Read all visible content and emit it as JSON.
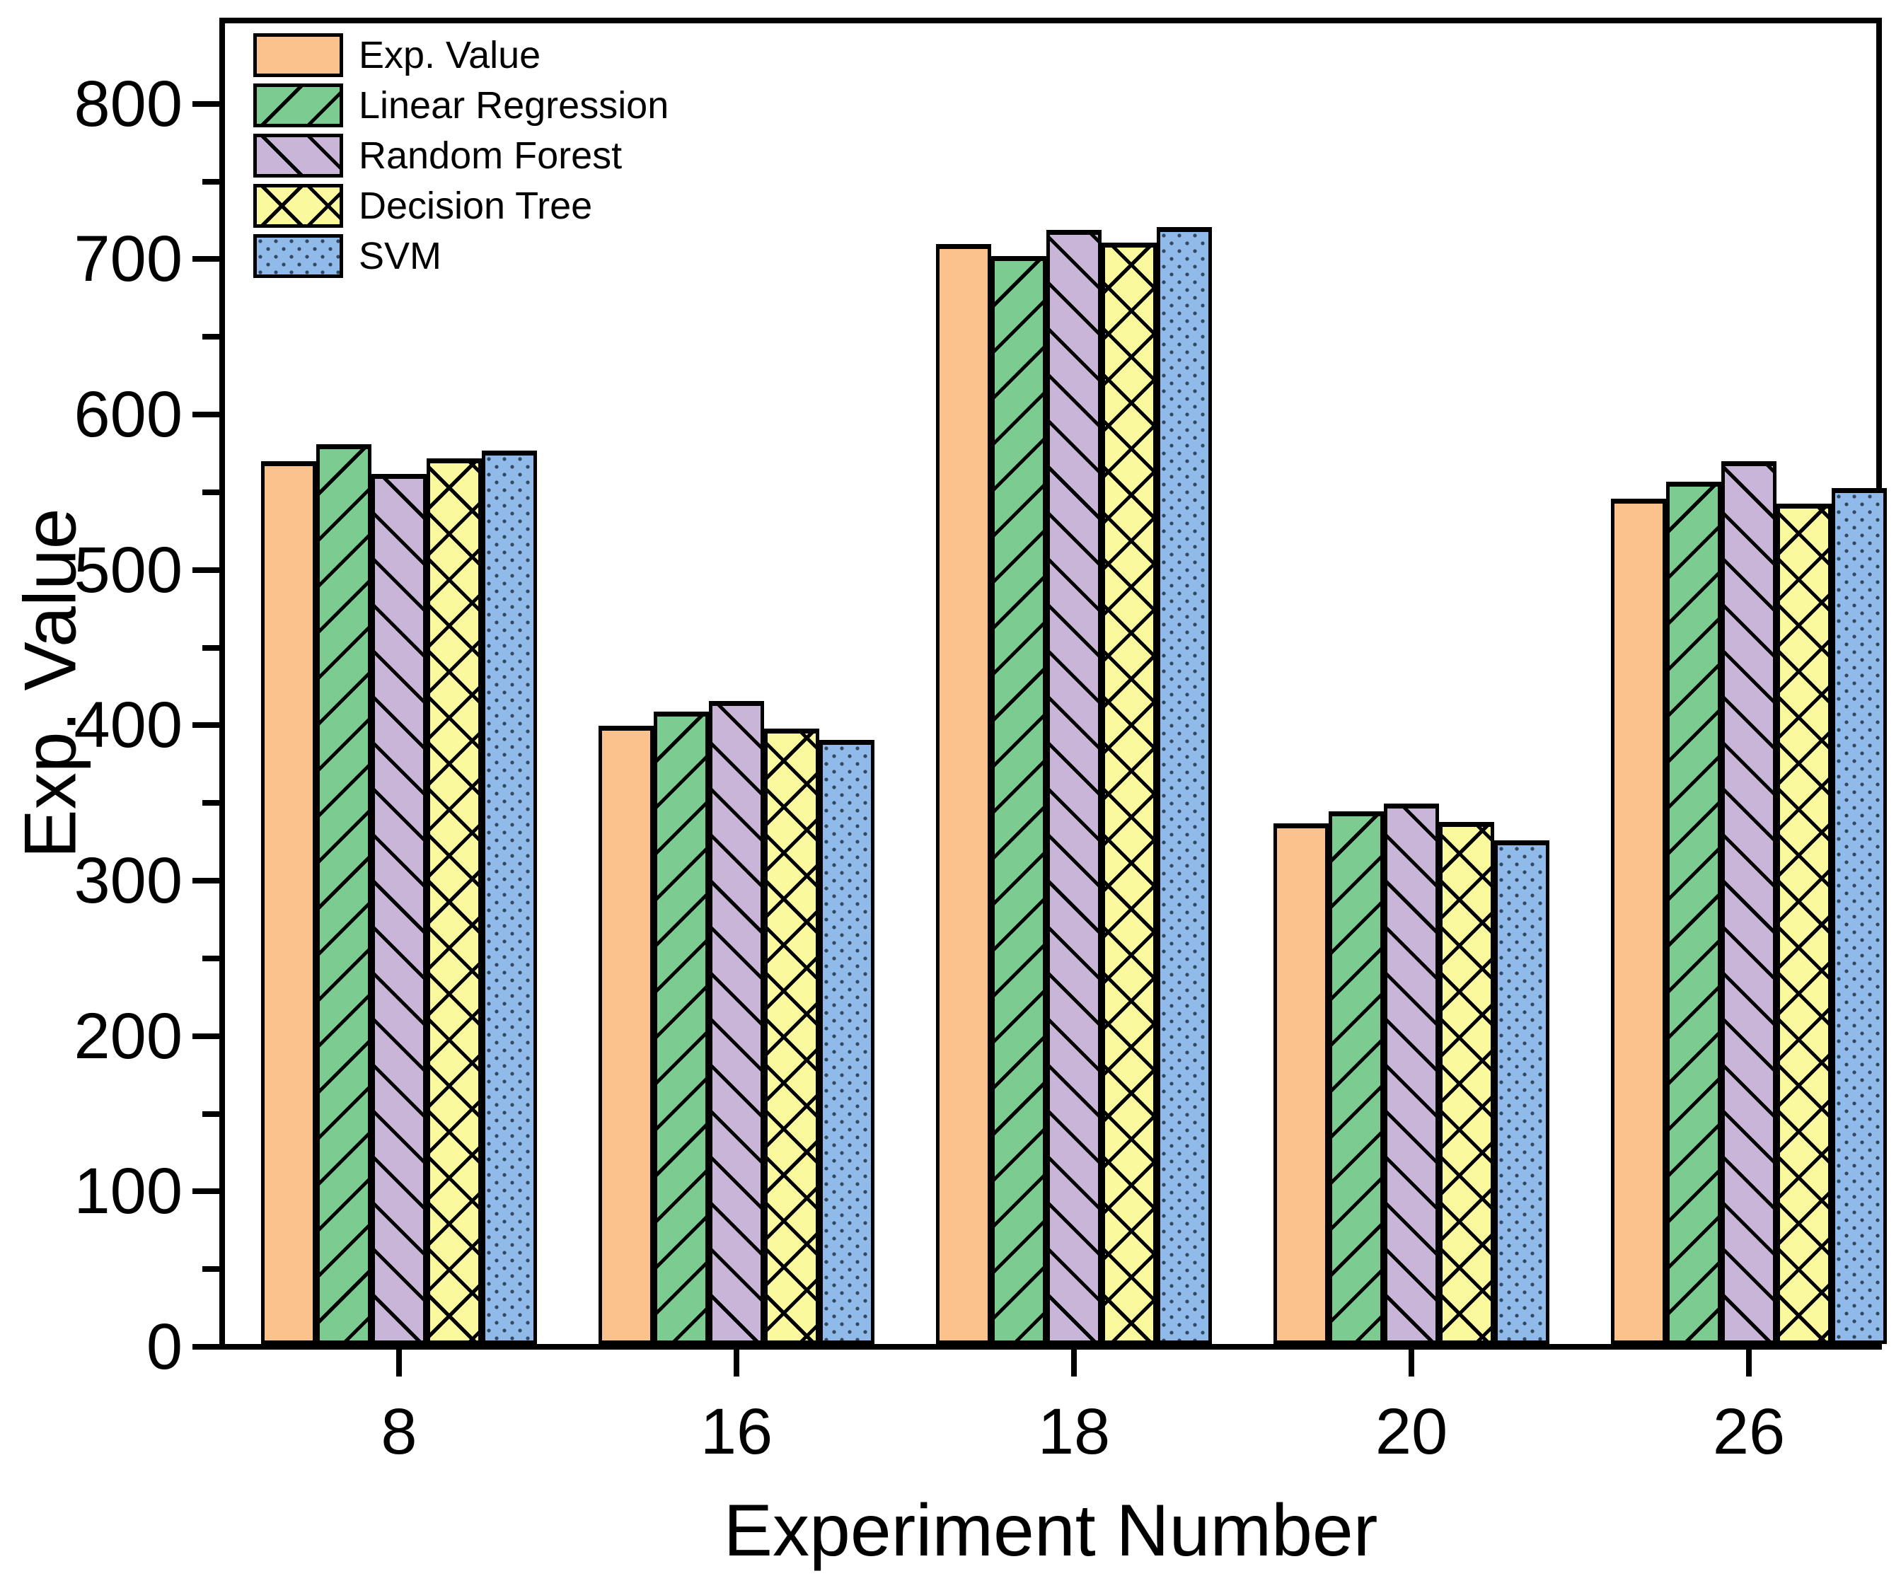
{
  "chart_data": {
    "type": "bar",
    "title": "",
    "xlabel": "Experiment Number",
    "ylabel": "Exp. Value",
    "categories": [
      "8",
      "16",
      "18",
      "20",
      "26"
    ],
    "series": [
      {
        "name": "Exp. Value",
        "color": "#FBC28D",
        "pattern": "solid",
        "values": [
          568,
          398,
          708,
          335,
          544
        ]
      },
      {
        "name": "Linear Regression",
        "color": "#7CCB90",
        "pattern": "diagonal-up",
        "values": [
          579,
          407,
          700,
          343,
          555
        ]
      },
      {
        "name": "Random Forest",
        "color": "#C9B5D8",
        "pattern": "diagonal-down",
        "values": [
          560,
          414,
          717,
          348,
          568
        ]
      },
      {
        "name": "Decision Tree",
        "color": "#FAF99E",
        "pattern": "crosshatch",
        "values": [
          570,
          396,
          709,
          336,
          541
        ]
      },
      {
        "name": "SVM",
        "color": "#8FBAEA",
        "pattern": "dots",
        "values": [
          575,
          389,
          719,
          324,
          551
        ]
      }
    ],
    "ylim": [
      0,
      850
    ],
    "y_major_tick_step": 100,
    "y_minor_tick_step": 50,
    "y_major_tick_labels": [
      "0",
      "100",
      "200",
      "300",
      "400",
      "500",
      "600",
      "700",
      "800"
    ],
    "grid": "off",
    "legend_position": "top-left",
    "bar_edge_color": "#000000",
    "axis_color": "#000000",
    "background_color": "#ffffff"
  }
}
